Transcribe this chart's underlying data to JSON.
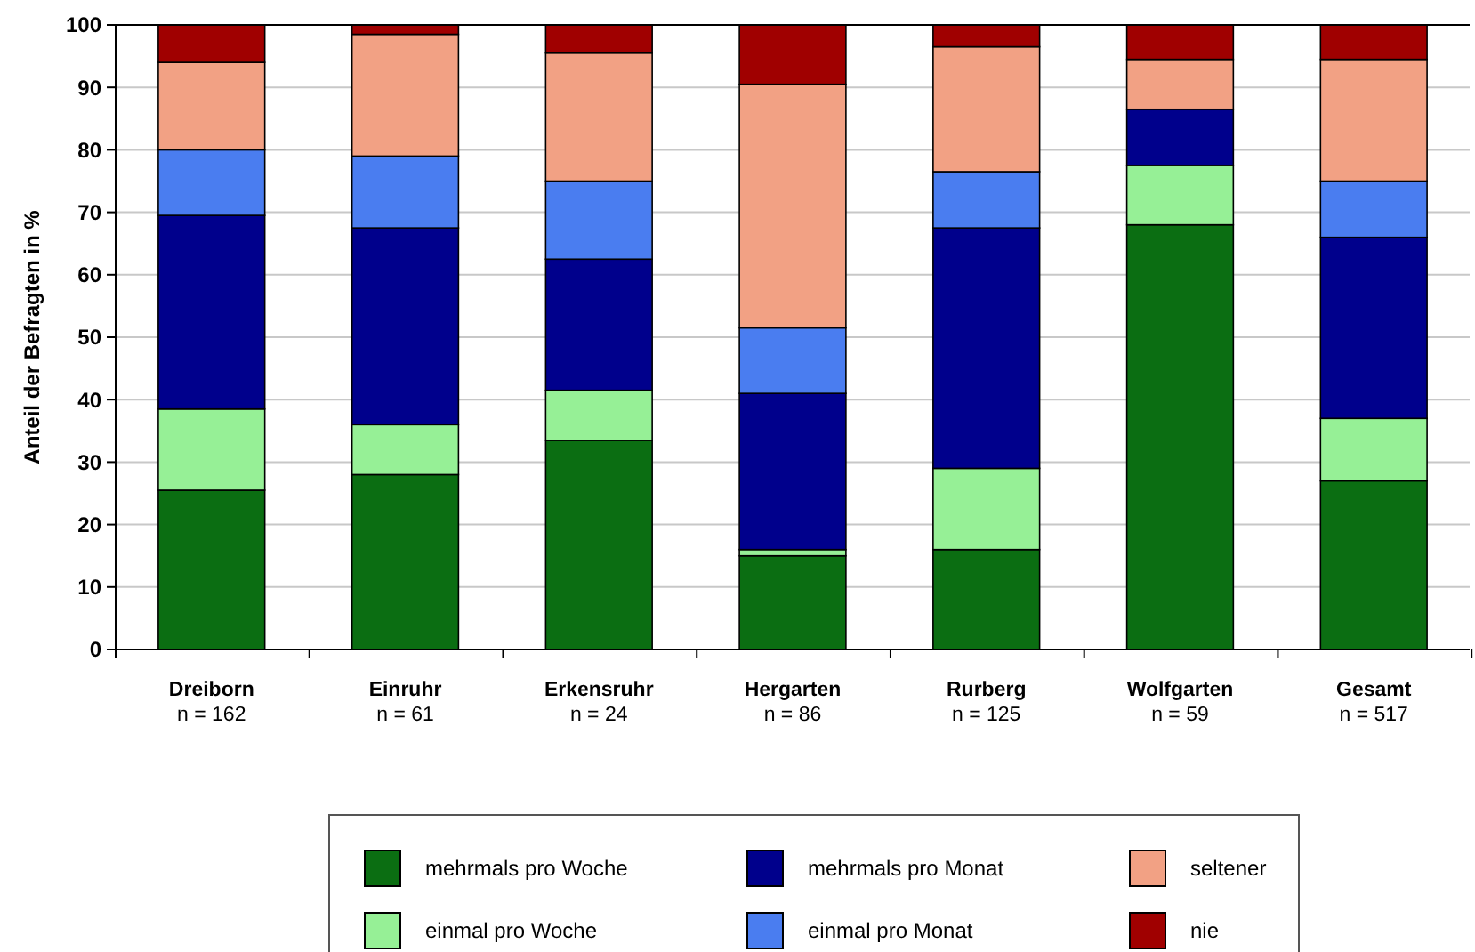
{
  "chart_data": {
    "type": "bar",
    "stacked": true,
    "ylabel": "Anteil der Befragten in %",
    "categories": [
      "Dreiborn\nn = 162",
      "Einruhr\nn = 61",
      "Erkensruhr\nn = 24",
      "Hergarten\nn = 86",
      "Rurberg\nn = 125",
      "Wolfgarten\nn = 59",
      "Gesamt\nn = 517"
    ],
    "series": [
      {
        "name": "mehrmals pro Woche",
        "color": "#0b6e12",
        "values": [
          25.5,
          28,
          33.5,
          15,
          16,
          68,
          27
        ]
      },
      {
        "name": "einmal pro Woche",
        "color": "#96f096",
        "values": [
          13,
          8,
          8,
          1,
          13,
          9.5,
          10
        ]
      },
      {
        "name": "mehrmals pro Monat",
        "color": "#00008c",
        "values": [
          31,
          31.5,
          21,
          25,
          38.5,
          9,
          29
        ]
      },
      {
        "name": "einmal pro Monat",
        "color": "#4a7df0",
        "values": [
          10.5,
          11.5,
          12.5,
          10.5,
          9,
          0,
          9
        ]
      },
      {
        "name": "seltener",
        "color": "#f2a184",
        "values": [
          14,
          19.5,
          20.5,
          39,
          20,
          8,
          19.5
        ]
      },
      {
        "name": "nie",
        "color": "#a00000",
        "values": [
          6,
          1.5,
          4.5,
          9.5,
          3.5,
          5.5,
          5.5
        ]
      }
    ],
    "ylim": [
      0,
      100
    ],
    "yticks": [
      0,
      10,
      20,
      30,
      40,
      50,
      60,
      70,
      80,
      90,
      100
    ],
    "grid": "y",
    "legend": "bottom"
  }
}
